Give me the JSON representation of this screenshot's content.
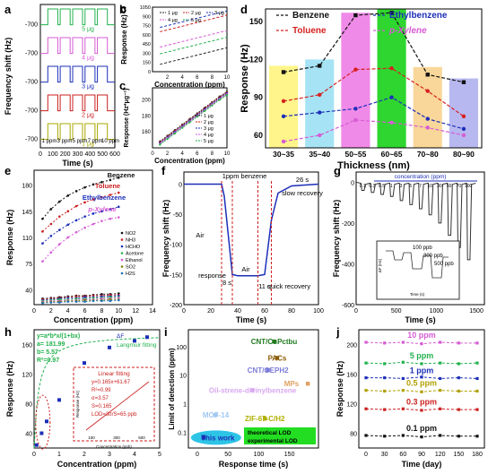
{
  "chart_data": [
    {
      "panel": "a",
      "type": "line",
      "xlabel": "Time (s)",
      "ylabel": "Frequency shift (Hz)",
      "xticks": [
        "0",
        "100",
        "200",
        "300",
        "400",
        "500",
        "600"
      ],
      "yticks": [
        "-700",
        "-700",
        "-700",
        "-700",
        "-700"
      ],
      "series": [
        {
          "name": "5 μg",
          "color": "#22b14c"
        },
        {
          "name": "4 μg",
          "color": "#d65bd4"
        },
        {
          "name": "3 μg",
          "color": "#1c2fb8"
        },
        {
          "name": "2 μg",
          "color": "#cc1f1f"
        },
        {
          "name": "1 μg",
          "color": "#a8a800"
        }
      ],
      "annotations": [
        "1 ppm",
        "3 ppm",
        "5 ppm",
        "7 ppm",
        "10 ppm"
      ]
    },
    {
      "panel": "b",
      "type": "line",
      "xlabel": "Concentration (ppm)",
      "ylabel": "Response (Hz)",
      "xlim": [
        0,
        10
      ],
      "ylim": [
        0,
        1050
      ],
      "xticks": [
        "2",
        "4",
        "6",
        "8",
        "10"
      ],
      "yticks": [
        "0",
        "150",
        "300",
        "450",
        "600",
        "750",
        "900",
        "1050"
      ],
      "x": [
        1,
        2,
        3,
        4,
        5,
        6,
        7,
        8,
        9,
        10
      ],
      "series": [
        {
          "name": "1 μg",
          "color": "#222222",
          "values": [
            120,
            150,
            180,
            210,
            240,
            270,
            300,
            330,
            360,
            390
          ]
        },
        {
          "name": "2 μg",
          "color": "#cc1f1f",
          "values": [
            650,
            680,
            710,
            740,
            770,
            800,
            830,
            860,
            890,
            920
          ]
        },
        {
          "name": "3 μg",
          "color": "#1c2fb8",
          "values": [
            720,
            750,
            780,
            810,
            840,
            870,
            900,
            930,
            960,
            990
          ]
        },
        {
          "name": "4 μg",
          "color": "#d65bd4",
          "values": [
            400,
            430,
            460,
            490,
            520,
            550,
            580,
            610,
            640,
            670
          ]
        },
        {
          "name": "5 μg",
          "color": "#22b14c",
          "values": [
            290,
            320,
            350,
            380,
            410,
            440,
            470,
            500,
            530,
            560
          ]
        }
      ]
    },
    {
      "panel": "c",
      "type": "line",
      "xlabel": "Concentration (ppm)",
      "ylabel": "Response (Hz*μg⁻¹)",
      "xlim": [
        0,
        10
      ],
      "ylim": [
        140,
        215
      ],
      "xticks": [
        "0",
        "2",
        "4",
        "6",
        "8",
        "10"
      ],
      "yticks": [
        "160",
        "180",
        "200"
      ],
      "x": [
        1,
        2,
        3,
        4,
        5,
        6,
        7,
        8,
        9,
        10
      ],
      "series": [
        {
          "name": "1 μg",
          "color": "#222222",
          "values": [
            148,
            155,
            162,
            169,
            176,
            183,
            190,
            197,
            204,
            210
          ]
        },
        {
          "name": "2 μg",
          "color": "#cc1f1f",
          "values": [
            147,
            154,
            161,
            168,
            175,
            182,
            189,
            196,
            203,
            209
          ]
        },
        {
          "name": "3 μg",
          "color": "#1c2fb8",
          "values": [
            146,
            153,
            160,
            167,
            174,
            181,
            188,
            195,
            202,
            208
          ]
        },
        {
          "name": "4 μg",
          "color": "#d65bd4",
          "values": [
            145,
            152,
            159,
            166,
            173,
            180,
            187,
            194,
            201,
            207
          ]
        },
        {
          "name": "5 μg",
          "color": "#22b14c",
          "values": [
            144,
            151,
            158,
            165,
            172,
            179,
            186,
            193,
            200,
            206
          ]
        }
      ]
    },
    {
      "panel": "d",
      "type": "bar",
      "xlabel": "Thickness (nm)",
      "ylabel": "Response (Hz)",
      "ylim": [
        50,
        160
      ],
      "categories": [
        "30~35",
        "35~40",
        "50~55",
        "60~65",
        "70~80",
        "80~90"
      ],
      "bar_values": [
        115,
        120,
        157,
        160,
        114,
        105
      ],
      "bar_colors": [
        "#fff58a",
        "#a6e4f5",
        "#f08ae8",
        "#2fd62f",
        "#f9d79a",
        "#b8b8f0"
      ],
      "yticks": [
        "60",
        "90",
        "120",
        "150"
      ],
      "series": [
        {
          "name": "Benzene",
          "color": "#111111",
          "values": [
            110,
            115,
            155,
            157,
            108,
            102
          ]
        },
        {
          "name": "Ethylbenzene",
          "color": "#1c2fb8",
          "values": [
            75,
            78,
            81,
            90,
            73,
            65
          ]
        },
        {
          "name": "Toluene",
          "color": "#d62020",
          "values": [
            87,
            92,
            112,
            113,
            95,
            75
          ]
        },
        {
          "name": "p-Xylene",
          "color": "#d65bd4",
          "values": [
            55,
            60,
            72,
            70,
            66,
            60
          ]
        }
      ]
    },
    {
      "panel": "e",
      "type": "line",
      "xlabel": "Concentration (ppm)",
      "ylabel": "Response (Hz)",
      "xlim": [
        0,
        14
      ],
      "ylim": [
        20,
        200
      ],
      "xticks": [
        "0",
        "2",
        "4",
        "6",
        "8",
        "10",
        "12",
        "14"
      ],
      "yticks": [
        "40",
        "75",
        "110",
        "145",
        "180"
      ],
      "x": [
        1,
        2,
        3,
        4,
        5,
        6,
        7,
        8,
        9,
        10
      ],
      "series": [
        {
          "name": "Benzene",
          "color": "#111111",
          "values": [
            135,
            148,
            158,
            166,
            172,
            177,
            181,
            184,
            187,
            190
          ]
        },
        {
          "name": "Toluene",
          "color": "#cc1f1f",
          "values": [
            118,
            128,
            138,
            145,
            152,
            157,
            161,
            164,
            167,
            170
          ]
        },
        {
          "name": "Ethylbenzene",
          "color": "#1c2fb8",
          "values": [
            102,
            112,
            120,
            127,
            133,
            138,
            142,
            145,
            148,
            151
          ]
        },
        {
          "name": "p-Xylene",
          "color": "#d65bd4",
          "values": [
            78,
            90,
            101,
            110,
            117,
            123,
            128,
            132,
            135,
            137
          ]
        },
        {
          "name": "NO2",
          "color": "#111111",
          "values": [
            28,
            29,
            30,
            31,
            32,
            32,
            33,
            34,
            34,
            35
          ]
        },
        {
          "name": "NH3",
          "color": "#cc1f1f",
          "values": [
            27,
            28,
            29,
            30,
            31,
            31,
            32,
            32,
            33,
            33
          ]
        },
        {
          "name": "HCHO",
          "color": "#1c2fb8",
          "values": [
            26,
            27,
            28,
            29,
            29,
            30,
            30,
            31,
            31,
            32
          ]
        },
        {
          "name": "Acetone",
          "color": "#22b14c",
          "values": [
            25,
            26,
            27,
            27,
            28,
            28,
            29,
            29,
            30,
            30
          ]
        },
        {
          "name": "Ethanol",
          "color": "#d65bd4",
          "values": [
            24,
            25,
            25,
            26,
            26,
            27,
            27,
            28,
            28,
            29
          ]
        },
        {
          "name": "SO2",
          "color": "#7f7f00",
          "values": [
            23,
            24,
            24,
            25,
            25,
            26,
            26,
            26,
            27,
            27
          ]
        },
        {
          "name": "H2S",
          "color": "#1c6fb8",
          "values": [
            22,
            23,
            23,
            24,
            24,
            24,
            25,
            25,
            25,
            26
          ]
        }
      ]
    },
    {
      "panel": "f",
      "type": "line",
      "xlabel": "Time (s)",
      "ylabel": "Frequency shift (Hz)",
      "xlim": [
        0,
        100
      ],
      "ylim": [
        -200,
        20
      ],
      "xticks": [
        "0",
        "20",
        "40",
        "60",
        "80",
        "100"
      ],
      "yticks": [
        "0",
        "-50",
        "-100",
        "-150",
        "-200"
      ],
      "x": [
        0,
        28,
        30,
        36,
        40,
        50,
        55,
        60,
        65,
        70,
        80,
        100
      ],
      "values": [
        0,
        0,
        -20,
        -150,
        -152,
        -152,
        -152,
        -150,
        -60,
        -15,
        -3,
        0
      ],
      "annotations": [
        "1ppm benzene",
        "Air",
        "response",
        "8 s",
        "Air",
        "11 s",
        "quick recovery",
        "26 s",
        "slow recovery"
      ]
    },
    {
      "panel": "g",
      "type": "line",
      "xlabel": "Time (s)",
      "ylabel": "Frequency shift (Hz)",
      "xlim": [
        0,
        1600
      ],
      "ylim": [
        -600,
        50
      ],
      "xticks": [
        "0",
        "500",
        "1000",
        "1500"
      ],
      "yticks": [
        "0",
        "-200",
        "-400",
        "-600"
      ],
      "concentration_label": "concentration (ppm)",
      "concentrations": [
        "0.1",
        "0.3",
        "0.5",
        "1",
        "3",
        "5",
        "7",
        "10",
        "30",
        "50",
        "70",
        "100"
      ],
      "depths": [
        -40,
        -50,
        -60,
        -70,
        -90,
        -110,
        -130,
        -160,
        -200,
        -260,
        -320,
        -380
      ],
      "inset": {
        "xlabel": "Time (s)",
        "ylabel": "ΔF (Hz)",
        "yticks": [
          "0",
          "-40",
          "-80",
          "-120"
        ],
        "xticks": [
          "0",
          "40",
          "80",
          "120"
        ],
        "labels": [
          "100 ppb",
          "300 ppb",
          "500 ppb"
        ]
      }
    },
    {
      "panel": "h",
      "type": "scatter",
      "xlabel": "Concentration (ppm)",
      "ylabel": "Response (Hz)",
      "xlim": [
        0,
        5
      ],
      "ylim": [
        20,
        180
      ],
      "xticks": [
        "0",
        "1",
        "2",
        "3",
        "4",
        "5"
      ],
      "yticks": [
        "40",
        "80",
        "120",
        "160"
      ],
      "x": [
        0.1,
        0.3,
        0.5,
        1,
        2,
        3,
        4,
        4.5
      ],
      "values": [
        24,
        40,
        56,
        85,
        135,
        156,
        165,
        170
      ],
      "legend": [
        "ΔF",
        "Langmuir fitting"
      ],
      "fit_text": [
        "y=a*b*x/(1+bx)",
        "a= 181.99",
        "b= 5.57",
        "R²=0.97"
      ],
      "inset": {
        "title": "Linear fitting",
        "lines": [
          "y=0.165x+61.67",
          "R²=0.99",
          "σ=3.57",
          "S=0.165",
          "LOD=3σ/S=65 ppb"
        ],
        "xlabel": "Concentration (ppb)",
        "ylabel": "Response (Hz)",
        "xticks": [
          "100",
          "300",
          "500"
        ]
      }
    },
    {
      "panel": "i",
      "type": "scatter",
      "xlabel": "Response time (s)",
      "ylabel": "Limit of detection (ppm)",
      "xticks": [
        "0",
        "50",
        "100",
        "150"
      ],
      "yticks": [
        "0.1",
        "1",
        "10",
        "100"
      ],
      "points": [
        {
          "label": "CNT/CuPctbu",
          "x": 125,
          "y": 150,
          "color": "#1f7a1f"
        },
        {
          "label": "PACs",
          "x": 130,
          "y": 40,
          "color": "#8b5a00"
        },
        {
          "label": "CNT/OEPH2",
          "x": 115,
          "y": 15,
          "color": "#7b7bd8"
        },
        {
          "label": "MPs",
          "x": 180,
          "y": 5,
          "color": "#e0a060"
        },
        {
          "label": "Oil-strene-divinylbenzene",
          "x": 90,
          "y": 3,
          "color": "#d8a8f0"
        },
        {
          "label": "MOF-14",
          "x": 30,
          "y": 0.4,
          "color": "#a0c8f0"
        },
        {
          "label": "ZIF-67-C/H2",
          "x": 110,
          "y": 0.3,
          "color": "#b0b000"
        },
        {
          "label": "This work",
          "x": 10,
          "y": 0.065,
          "color": "#1c2fb8"
        }
      ],
      "legend": [
        "theoretical LOD",
        "experimental LOD"
      ]
    },
    {
      "panel": "j",
      "type": "line",
      "xlabel": "Time (day)",
      "ylabel": "Response (Hz)",
      "xlim": [
        0,
        180
      ],
      "ylim": [
        60,
        220
      ],
      "xticks": [
        "0",
        "30",
        "60",
        "90",
        "120",
        "150",
        "180"
      ],
      "yticks": [
        "80",
        "120",
        "160",
        "200"
      ],
      "x": [
        0,
        30,
        60,
        90,
        120,
        150,
        180
      ],
      "series": [
        {
          "name": "10 ppm",
          "color": "#d65bd4",
          "values": [
            203,
            202,
            203,
            201,
            203,
            202,
            202
          ]
        },
        {
          "name": "5 ppm",
          "color": "#22b14c",
          "values": [
            175,
            174,
            176,
            174,
            175,
            174,
            175
          ]
        },
        {
          "name": "1 ppm",
          "color": "#1c2fb8",
          "values": [
            155,
            155,
            154,
            156,
            154,
            155,
            154
          ]
        },
        {
          "name": "0.5 ppm",
          "color": "#b0a000",
          "values": [
            138,
            137,
            138,
            136,
            138,
            137,
            137
          ]
        },
        {
          "name": "0.3 ppm",
          "color": "#cc1f1f",
          "values": [
            113,
            112,
            113,
            111,
            113,
            112,
            112
          ]
        },
        {
          "name": "0.1 ppm",
          "color": "#111111",
          "values": [
            77,
            76,
            77,
            75,
            77,
            76,
            76
          ]
        }
      ]
    }
  ],
  "panel_labels": [
    "a",
    "b",
    "c",
    "d",
    "e",
    "f",
    "g",
    "h",
    "i",
    "j"
  ]
}
